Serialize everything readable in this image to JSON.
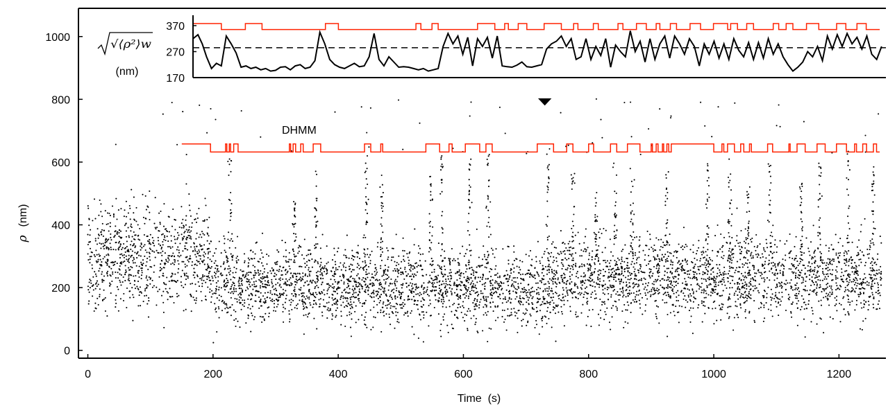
{
  "chart_data": [
    {
      "type": "scatter",
      "xlabel": "Time  (s)",
      "ylabel_symbol": "ρ",
      "ylabel_unit": "(nm)",
      "xlim": [
        -15,
        1275
      ],
      "ylim": [
        -25,
        1090
      ],
      "xticks": [
        0,
        200,
        400,
        600,
        800,
        1000,
        1200
      ],
      "yticks": [
        0,
        200,
        400,
        600,
        800,
        1000
      ],
      "grid": false,
      "point_color": "#000000",
      "scatter_density": [
        {
          "t": 0,
          "center": 300,
          "spread": 120
        },
        {
          "t": 190,
          "center": 300,
          "spread": 115
        },
        {
          "t": 200,
          "center": 215,
          "spread": 85
        },
        {
          "t": 720,
          "center": 200,
          "spread": 85
        },
        {
          "t": 760,
          "center": 235,
          "spread": 90
        },
        {
          "t": 1270,
          "center": 235,
          "spread": 90
        }
      ],
      "scatter_bursts": [
        {
          "t": 228,
          "peak": 620
        },
        {
          "t": 330,
          "peak": 480
        },
        {
          "t": 364,
          "peak": 600
        },
        {
          "t": 445,
          "peak": 620
        },
        {
          "t": 470,
          "peak": 560
        },
        {
          "t": 548,
          "peak": 560
        },
        {
          "t": 566,
          "peak": 620
        },
        {
          "t": 610,
          "peak": 610
        },
        {
          "t": 640,
          "peak": 640
        },
        {
          "t": 735,
          "peak": 660
        },
        {
          "t": 775,
          "peak": 570
        },
        {
          "t": 812,
          "peak": 520
        },
        {
          "t": 842,
          "peak": 600
        },
        {
          "t": 870,
          "peak": 600
        },
        {
          "t": 925,
          "peak": 580
        },
        {
          "t": 990,
          "peak": 600
        },
        {
          "t": 1025,
          "peak": 610
        },
        {
          "t": 1055,
          "peak": 540
        },
        {
          "t": 1090,
          "peak": 600
        },
        {
          "t": 1140,
          "peak": 540
        },
        {
          "t": 1170,
          "peak": 600
        },
        {
          "t": 1215,
          "peak": 650
        },
        {
          "t": 1255,
          "peak": 620
        }
      ],
      "annotations": [
        {
          "text": "DHMM",
          "x": 310,
          "y": 690
        },
        {
          "marker": "down-triangle",
          "x": 730,
          "y": 800
        }
      ],
      "dhmm_trace": {
        "color": "#ff2200",
        "low": 632,
        "high": 658,
        "x_start": 150,
        "x_end": 1265,
        "high_intervals": [
          [
            150,
            196
          ],
          [
            220,
            222
          ],
          [
            226,
            228
          ],
          [
            233,
            240
          ],
          [
            322,
            324
          ],
          [
            328,
            332
          ],
          [
            340,
            344
          ],
          [
            360,
            372
          ],
          [
            442,
            452
          ],
          [
            468,
            471
          ],
          [
            540,
            562
          ],
          [
            577,
            582
          ],
          [
            603,
            626
          ],
          [
            636,
            646
          ],
          [
            718,
            744
          ],
          [
            765,
            775
          ],
          [
            800,
            808
          ],
          [
            835,
            845
          ],
          [
            862,
            882
          ],
          [
            900,
            902
          ],
          [
            908,
            911
          ],
          [
            918,
            920
          ],
          [
            925,
            928
          ],
          [
            932,
            1000
          ],
          [
            1013,
            1016
          ],
          [
            1022,
            1033
          ],
          [
            1043,
            1048
          ],
          [
            1057,
            1060
          ],
          [
            1086,
            1094
          ],
          [
            1120,
            1122
          ],
          [
            1133,
            1146
          ],
          [
            1165,
            1178
          ],
          [
            1196,
            1212
          ],
          [
            1225,
            1228
          ],
          [
            1238,
            1244
          ],
          [
            1255,
            1260
          ]
        ]
      }
    },
    {
      "type": "line",
      "ylabel": "(nm)",
      "ylabel_formula": "√⟨ρ²⟩w",
      "xlim": [
        150,
        1275
      ],
      "ylim": [
        170,
        410
      ],
      "yticks": [
        170,
        270,
        370
      ],
      "reference_line": {
        "y": 285,
        "style": "dashed"
      },
      "series": [
        {
          "color": "#000000",
          "x": [
            150,
            158,
            165,
            172,
            180,
            188,
            196,
            204,
            212,
            220,
            228,
            236,
            244,
            252,
            260,
            268,
            276,
            284,
            292,
            300,
            308,
            316,
            324,
            332,
            340,
            348,
            356,
            364,
            372,
            380,
            388,
            396,
            404,
            412,
            420,
            428,
            436,
            444,
            452,
            460,
            468,
            476,
            484,
            492,
            500,
            508,
            516,
            524,
            532,
            540,
            548,
            556,
            564,
            572,
            580,
            588,
            596,
            604,
            612,
            620,
            628,
            636,
            644,
            652,
            660,
            668,
            676,
            684,
            692,
            700,
            708,
            716,
            724,
            732,
            740,
            748,
            756,
            764,
            772,
            780,
            788,
            796,
            804,
            812,
            820,
            828,
            836,
            844,
            852,
            860,
            868,
            876,
            884,
            892,
            900,
            908,
            916,
            924,
            932,
            940,
            948,
            956,
            964,
            972,
            980,
            988,
            996,
            1004,
            1012,
            1020,
            1028,
            1036,
            1044,
            1052,
            1060,
            1068,
            1076,
            1084,
            1092,
            1100,
            1108,
            1116,
            1124,
            1132,
            1140,
            1148,
            1156,
            1164,
            1172,
            1180,
            1188,
            1196,
            1204,
            1212,
            1220,
            1228,
            1236,
            1244,
            1252,
            1260,
            1268
          ],
          "values": [
            320,
            335,
            300,
            250,
            205,
            225,
            215,
            330,
            300,
            265,
            210,
            215,
            205,
            210,
            200,
            205,
            195,
            198,
            210,
            212,
            200,
            215,
            220,
            205,
            210,
            235,
            345,
            300,
            240,
            220,
            210,
            205,
            215,
            225,
            212,
            215,
            250,
            340,
            240,
            215,
            250,
            230,
            210,
            212,
            210,
            205,
            200,
            205,
            195,
            200,
            205,
            290,
            340,
            300,
            330,
            260,
            325,
            215,
            320,
            290,
            325,
            245,
            330,
            215,
            212,
            210,
            218,
            230,
            212,
            210,
            215,
            220,
            280,
            300,
            310,
            330,
            290,
            320,
            240,
            250,
            320,
            240,
            290,
            255,
            320,
            210,
            295,
            270,
            250,
            350,
            270,
            310,
            230,
            320,
            240,
            300,
            330,
            245,
            330,
            300,
            260,
            320,
            290,
            215,
            300,
            260,
            310,
            245,
            300,
            240,
            320,
            275,
            250,
            305,
            240,
            305,
            245,
            320,
            260,
            300,
            250,
            220,
            195,
            210,
            230,
            270,
            250,
            290,
            235,
            330,
            280,
            335,
            290,
            340,
            300,
            325,
            280,
            330,
            260,
            240,
            290
          ]
        },
        {
          "color": "#ff2200",
          "low": 355,
          "high": 378,
          "high_intervals": [
            [
              150,
              196
            ],
            [
              235,
              262
            ],
            [
              365,
              386
            ],
            [
              512,
              520
            ],
            [
              538,
              548
            ],
            [
              612,
              640
            ],
            [
              656,
              662
            ],
            [
              678,
              692
            ],
            [
              720,
              748
            ],
            [
              768,
              775
            ],
            [
              800,
              808
            ],
            [
              840,
              848
            ],
            [
              870,
              886
            ],
            [
              902,
              908
            ],
            [
              925,
              935
            ],
            [
              957,
              974
            ],
            [
              995,
              1018
            ],
            [
              1023,
              1034
            ],
            [
              1049,
              1060
            ],
            [
              1092,
              1101
            ],
            [
              1113,
              1124
            ],
            [
              1146,
              1166
            ],
            [
              1195,
              1210
            ],
            [
              1228,
              1243
            ]
          ]
        }
      ]
    }
  ]
}
